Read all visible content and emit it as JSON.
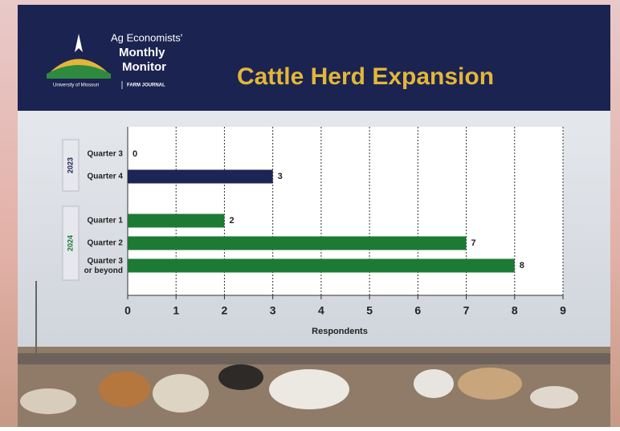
{
  "logo": {
    "line1": "Ag Economists'",
    "line2": "Monthly",
    "line3": "Monitor",
    "org1": "University of Missouri",
    "org2": "FARM JOURNAL"
  },
  "chart_data": {
    "type": "bar",
    "orientation": "horizontal",
    "title": "Cattle Herd Expansion",
    "xlabel": "Respondents",
    "xlim": [
      0,
      9
    ],
    "xticks": [
      0,
      1,
      2,
      3,
      4,
      5,
      6,
      7,
      8,
      9
    ],
    "grid": true,
    "series": [
      {
        "name": "2023",
        "color": "#1c2553",
        "categories": [
          "Quarter 3",
          "Quarter 4"
        ],
        "values": [
          0,
          3
        ]
      },
      {
        "name": "2024",
        "color": "#1d7a35",
        "categories": [
          "Quarter 1",
          "Quarter 2",
          "Quarter 3\nor beyond"
        ],
        "values": [
          2,
          7,
          8
        ]
      }
    ]
  }
}
